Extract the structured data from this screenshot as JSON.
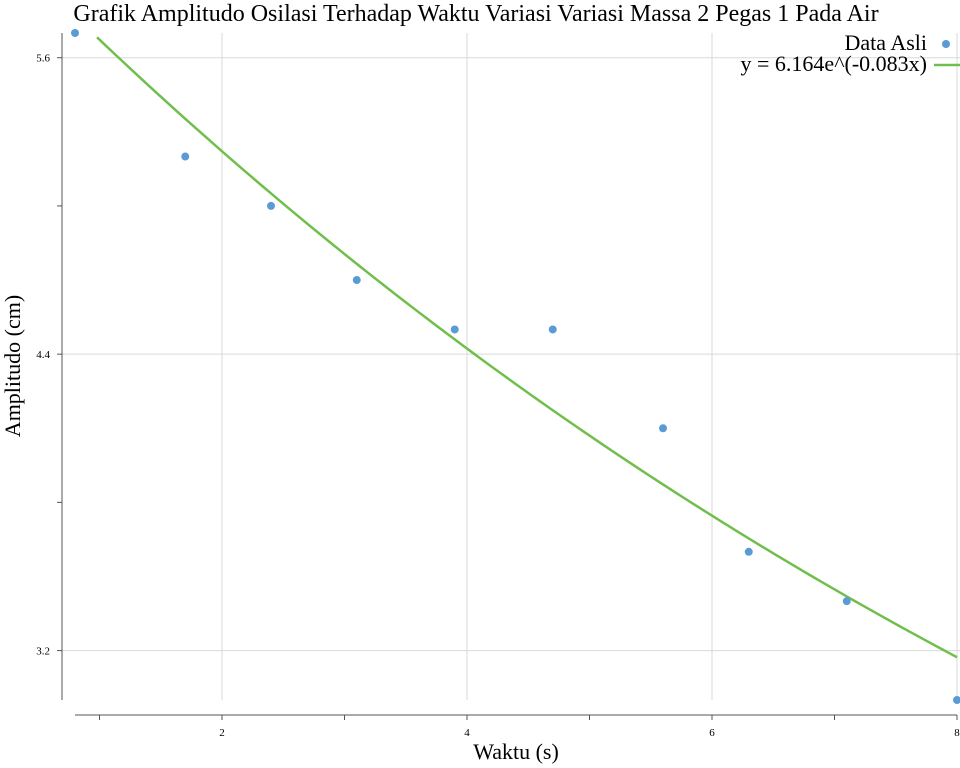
{
  "chart_data": {
    "type": "scatter",
    "title": "Grafik Amplitudo Osilasi Terhadap Waktu Variasi Variasi Massa 2 Pegas 1 Pada Air",
    "xlabel": "Waktu (s)",
    "ylabel": "Amplitudo (cm)",
    "xlim": [
      0.8,
      8.0
    ],
    "ylim": [
      3.0,
      5.7
    ],
    "x_ticks": [
      {
        "value": 2,
        "label": "2"
      },
      {
        "value": 4,
        "label": "4"
      },
      {
        "value": 6,
        "label": "6"
      },
      {
        "value": 8,
        "label": "8"
      }
    ],
    "x_minor_ticks": [
      1,
      3,
      5,
      7
    ],
    "y_ticks": [
      {
        "value": 3.2,
        "label": "3.2"
      },
      {
        "value": 4.4,
        "label": "4.4"
      },
      {
        "value": 5.6,
        "label": "5.6"
      }
    ],
    "y_minor_ticks": [
      3.8,
      5.0
    ],
    "grid": true,
    "legend_position": "top-right",
    "series": [
      {
        "name": "Data Asli",
        "kind": "scatter",
        "color": "#5b9bd5",
        "x": [
          0.8,
          1.7,
          2.4,
          3.1,
          3.9,
          4.7,
          5.6,
          6.3,
          7.1,
          8.0
        ],
        "y": [
          5.7,
          5.2,
          5.0,
          4.7,
          4.5,
          4.5,
          4.1,
          3.6,
          3.4,
          3.0
        ]
      },
      {
        "name": "y = 6.164e^(-0.083x)",
        "kind": "line",
        "color": "#70bf4d",
        "equation": {
          "a": 6.164,
          "b": -0.083
        }
      }
    ]
  }
}
